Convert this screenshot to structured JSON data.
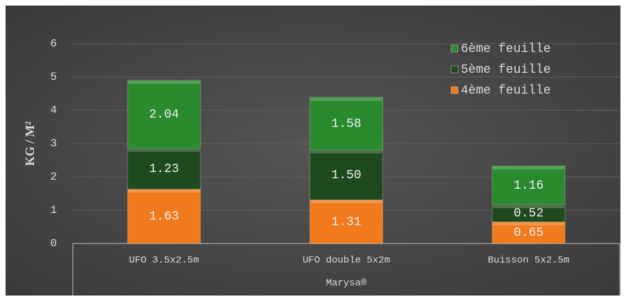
{
  "chart_data": {
    "type": "stacked_bar",
    "ylabel": "KG / M²",
    "group_label": "Marysa®",
    "categories": [
      "UFO 3.5x2.5m",
      "UFO double 5x2m",
      "Buisson 5x2.5m"
    ],
    "series": [
      {
        "name": "4ème feuille",
        "color": "#f07a1c",
        "values": [
          1.63,
          1.31,
          0.65
        ],
        "value_labels": [
          "1.63",
          "1.31",
          "0.65"
        ]
      },
      {
        "name": "5ème feuille",
        "color": "#1f4a1f",
        "values": [
          1.23,
          1.5,
          0.52
        ],
        "value_labels": [
          "1.23",
          "1.50",
          "0.52"
        ]
      },
      {
        "name": "6ème feuille",
        "color": "#2a8a2e",
        "values": [
          2.04,
          1.58,
          1.16
        ],
        "value_labels": [
          "2.04",
          "1.58",
          "1.16"
        ]
      }
    ],
    "ylim": [
      0,
      6.5
    ],
    "yticks": [
      0,
      1,
      2,
      3,
      4,
      5,
      6
    ],
    "grid": true,
    "legend": "top-right"
  }
}
